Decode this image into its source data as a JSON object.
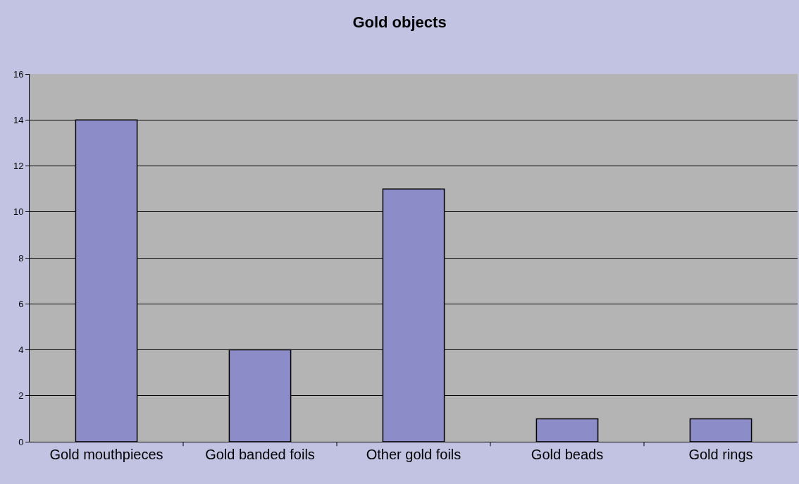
{
  "chart_data": {
    "type": "bar",
    "title": "Gold objects",
    "categories": [
      "Gold mouthpieces",
      "Gold banded foils",
      "Other gold foils",
      "Gold beads",
      "Gold rings"
    ],
    "values": [
      14,
      4,
      11,
      1,
      1
    ],
    "color": "#8c8cc8",
    "ylim": [
      0,
      16
    ],
    "yticks": [
      0,
      2,
      4,
      6,
      8,
      10,
      12,
      14,
      16
    ],
    "grid": "y",
    "legend": false
  }
}
